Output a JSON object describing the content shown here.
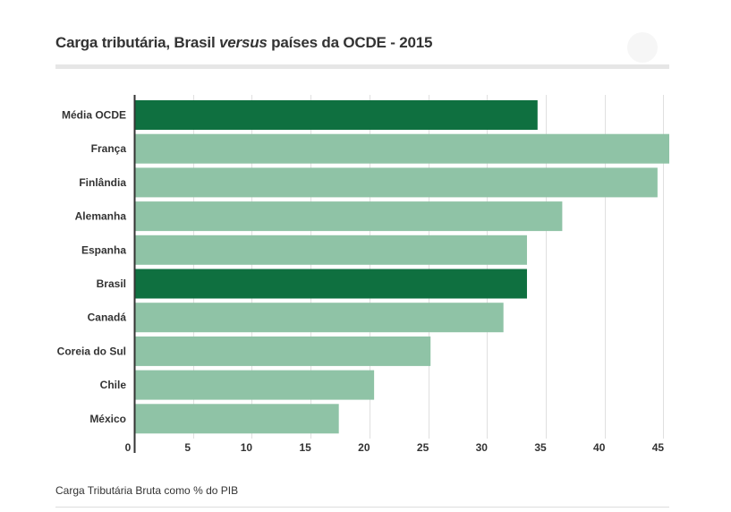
{
  "header": {
    "title_part1": "Carga tributária, Brasil ",
    "title_italic": "versus",
    "title_part2": " países da OCDE - 2015"
  },
  "chart_data": {
    "type": "bar",
    "orientation": "horizontal",
    "categories": [
      "Média OCDE",
      "França",
      "Finlândia",
      "Alemanha",
      "Espanha",
      "Brasil",
      "Canadá",
      "Coreia do Sul",
      "Chile",
      "México"
    ],
    "values": [
      34.3,
      45.5,
      44.5,
      36.4,
      33.4,
      33.4,
      31.4,
      25.2,
      20.4,
      17.4
    ],
    "highlighted": [
      "Média OCDE",
      "Brasil"
    ],
    "xlim": [
      0,
      45.5
    ],
    "xticks": [
      0,
      5,
      10,
      15,
      20,
      25,
      30,
      35,
      40,
      45
    ],
    "grid": true,
    "colors": {
      "highlight": "#0f7040",
      "default": "#8fc3a6",
      "grid": "#e0e0e0",
      "axis": "#333333"
    }
  },
  "footer": {
    "caption": "Carga Tributária Bruta como % do PIB"
  }
}
